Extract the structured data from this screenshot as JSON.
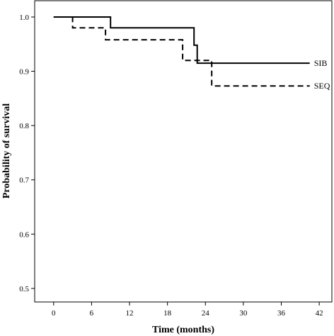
{
  "chart_data": {
    "type": "line",
    "step": true,
    "title": "",
    "xlabel": "Time (months)",
    "ylabel": "Probability of survival",
    "xlim": [
      -3,
      44
    ],
    "ylim": [
      0.475,
      1.03
    ],
    "xticks": [
      0,
      6,
      12,
      18,
      24,
      30,
      36,
      42
    ],
    "yticks": [
      0.5,
      0.6,
      0.7,
      0.8,
      0.9,
      1.0
    ],
    "ytick_labels": [
      "0.5",
      "0.6",
      "0.7",
      "0.8",
      "0.9",
      "1.0"
    ],
    "grid": false,
    "legend": "inline labels at right end of curves",
    "series": [
      {
        "name": "SIB",
        "dash": "solid",
        "points": [
          [
            0,
            1.0
          ],
          [
            9,
            1.0
          ],
          [
            9,
            0.98
          ],
          [
            22.2,
            0.98
          ],
          [
            22.2,
            0.948
          ],
          [
            22.7,
            0.948
          ],
          [
            22.7,
            0.915
          ],
          [
            40.5,
            0.915
          ]
        ]
      },
      {
        "name": "SEQ",
        "dash": "dashed",
        "points": [
          [
            0,
            1.0
          ],
          [
            3,
            1.0
          ],
          [
            3,
            0.98
          ],
          [
            8.2,
            0.98
          ],
          [
            8.2,
            0.958
          ],
          [
            20.4,
            0.958
          ],
          [
            20.4,
            0.92
          ],
          [
            25,
            0.92
          ],
          [
            25,
            0.873
          ],
          [
            40.5,
            0.873
          ]
        ]
      }
    ]
  }
}
